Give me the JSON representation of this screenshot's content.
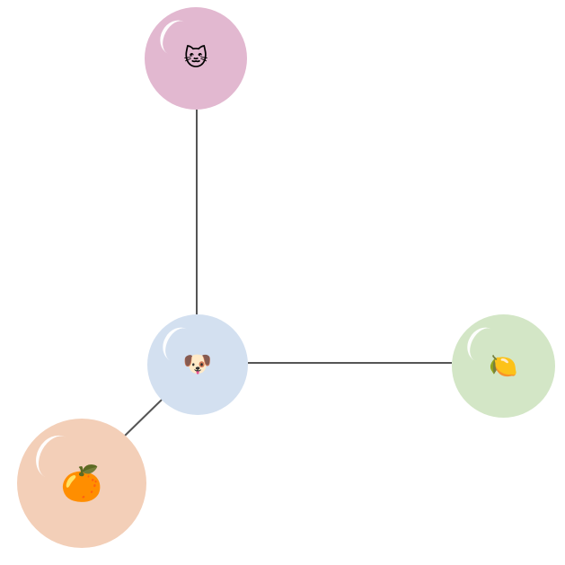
{
  "nodes": {
    "cat": {
      "emoji": "🐱",
      "icon": "cat-face-icon",
      "color": "#e2b8d0"
    },
    "dog": {
      "emoji": "🐶",
      "icon": "dog-face-icon",
      "color": "#d3e0f0"
    },
    "lemon": {
      "emoji": "🍋",
      "icon": "lemon-icon",
      "color": "#d3e6c6"
    },
    "orange": {
      "emoji": "🍊",
      "icon": "orange-icon",
      "color": "#f3cfb8"
    }
  },
  "edges": [
    {
      "from": "dog",
      "to": "cat"
    },
    {
      "from": "dog",
      "to": "lemon"
    },
    {
      "from": "dog",
      "to": "orange"
    }
  ],
  "edge_color": "#555555"
}
